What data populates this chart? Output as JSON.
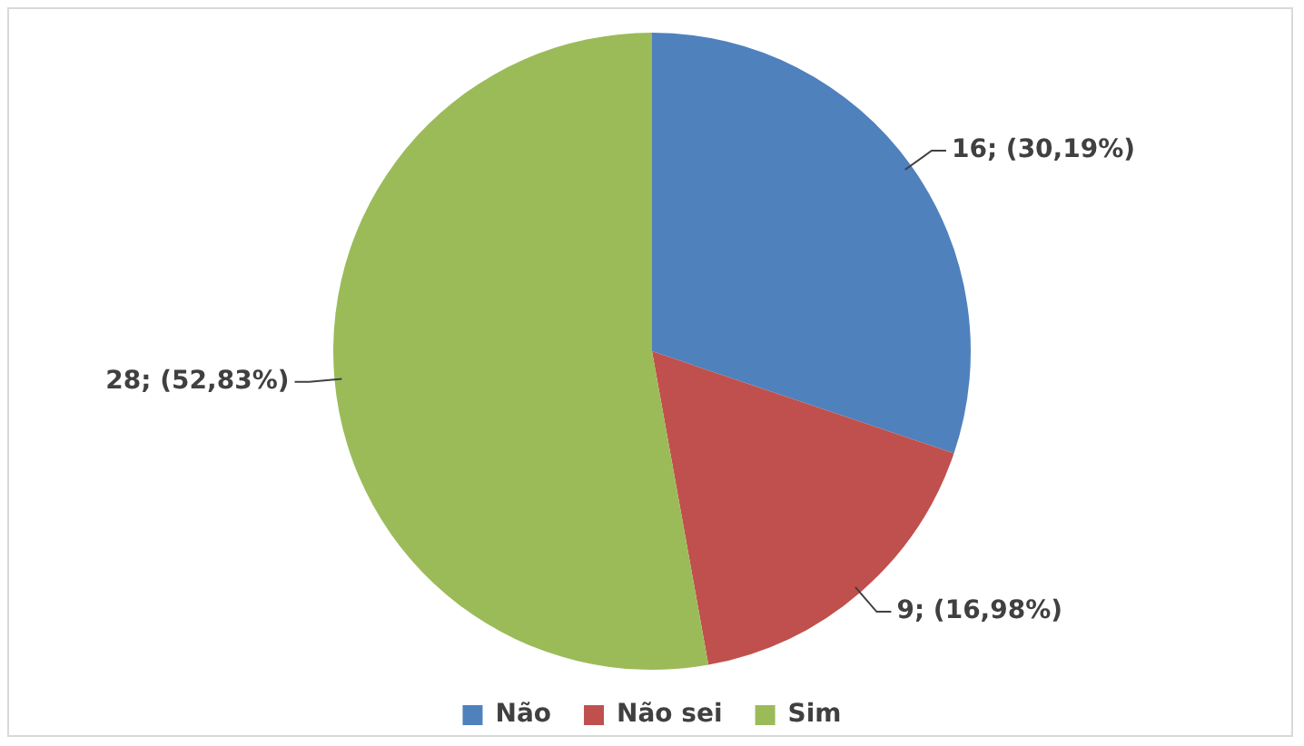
{
  "chart_data": {
    "type": "pie",
    "categories": [
      "Não",
      "Não sei",
      "Sim"
    ],
    "values": [
      16,
      9,
      28
    ],
    "colors": [
      "#4f81bd",
      "#c0504d",
      "#9bbb59"
    ],
    "value_labels": [
      "16; (30,19%)",
      "9; (16,98%)",
      "28; (52,83%)"
    ],
    "legend": "bottom"
  }
}
